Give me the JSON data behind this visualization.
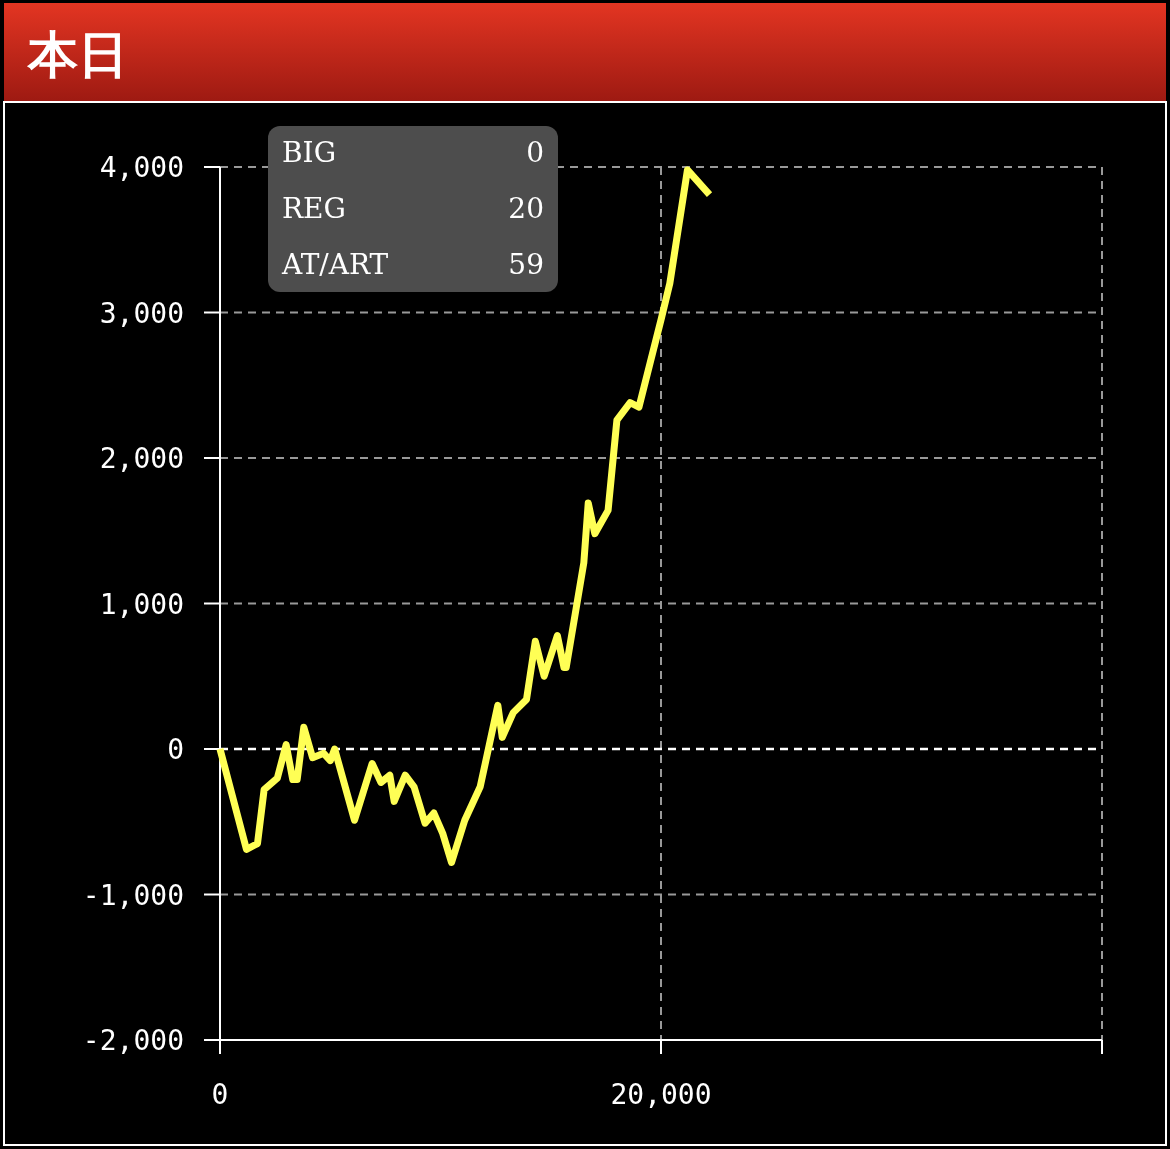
{
  "chart_data": {
    "type": "line",
    "title": "本日",
    "color": "#ffff55",
    "line_style": "solid",
    "marker": "none",
    "grid": true,
    "ref_lines": [
      {
        "axis": "y",
        "value": 0,
        "color": "#ffffff",
        "line_style": "dashed"
      }
    ],
    "x": [
      0,
      1200,
      1700,
      2000,
      2600,
      3000,
      3300,
      3500,
      3800,
      4200,
      4700,
      5000,
      5200,
      6100,
      6900,
      7300,
      7700,
      7900,
      8400,
      8800,
      9300,
      9700,
      10100,
      10500,
      11100,
      11800,
      12600,
      12800,
      13300,
      13900,
      14300,
      14700,
      15300,
      15600,
      15700,
      16500,
      16700,
      17000,
      17600,
      18000,
      18600,
      19000,
      20000,
      20400,
      21200,
      22200
    ],
    "values": [
      0,
      -690,
      -650,
      -280,
      -200,
      30,
      -210,
      -210,
      150,
      -60,
      -30,
      -80,
      0,
      -490,
      -100,
      -230,
      -180,
      -360,
      -180,
      -260,
      -510,
      -440,
      -580,
      -780,
      -490,
      -260,
      300,
      80,
      250,
      340,
      740,
      500,
      780,
      560,
      560,
      1280,
      1690,
      1480,
      1640,
      2260,
      2380,
      2350,
      2950,
      3200,
      3980,
      3810
    ],
    "xlim": [
      0,
      40000
    ],
    "ylim": [
      -2000,
      4000
    ],
    "xticks": [
      0,
      {
        "value": 20000,
        "label": "20,000"
      },
      {
        "value": 40000,
        "label": null
      }
    ],
    "yticks": [
      {
        "value": -2000,
        "label": "-2,000"
      },
      {
        "value": -1000,
        "label": "-1,000"
      },
      0,
      {
        "value": 1000,
        "label": "1,000"
      },
      {
        "value": 2000,
        "label": "2,000"
      },
      {
        "value": 3000,
        "label": "3,000"
      },
      {
        "value": 4000,
        "label": "4,000"
      }
    ],
    "annotations": [
      "BIG",
      "0",
      "REG",
      "20",
      "AT/ART",
      "59"
    ]
  }
}
